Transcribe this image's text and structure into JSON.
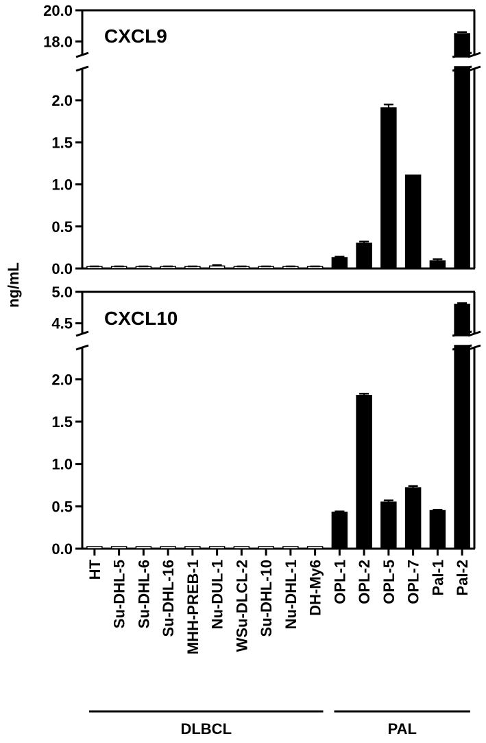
{
  "y_axis_label": "ng/mL",
  "categories": [
    "HT",
    "Su-DHL-5",
    "Su-DHL-6",
    "Su-DHL-16",
    "MHH-PREB-1",
    "Nu-DUL-1",
    "WSu-DLCL-2",
    "Su-DHL-10",
    "Nu-DHL-1",
    "DH-My6",
    "OPL-1",
    "OPL-2",
    "OPL-5",
    "OPL-7",
    "Pal-1",
    "Pal-2"
  ],
  "groups": [
    {
      "label": "DLBCL",
      "first": 0,
      "last": 9
    },
    {
      "label": "PAL",
      "first": 10,
      "last": 15
    }
  ],
  "chart_data": [
    {
      "type": "bar",
      "title": "CXCL9",
      "axis_break": true,
      "lower_range": [
        0,
        2.4
      ],
      "upper_range": [
        17,
        20
      ],
      "lower_ticks": [
        "0.0",
        "0.5",
        "1.0",
        "1.5",
        "2.0"
      ],
      "upper_ticks": [
        "18.0",
        "20.0"
      ],
      "values": [
        0.02,
        0.02,
        0.02,
        0.02,
        0.02,
        0.03,
        0.02,
        0.02,
        0.02,
        0.02,
        0.13,
        0.3,
        1.91,
        1.11,
        0.09,
        18.5
      ],
      "errors": [
        0.005,
        0.005,
        0.005,
        0.005,
        0.005,
        0.01,
        0.005,
        0.005,
        0.005,
        0.005,
        0.01,
        0.02,
        0.04,
        0.0,
        0.02,
        0.1
      ],
      "fill": [
        "#ffffff",
        "#ffffff",
        "#ffffff",
        "#ffffff",
        "#ffffff",
        "#ffffff",
        "#ffffff",
        "#ffffff",
        "#ffffff",
        "#ffffff",
        "#000000",
        "#000000",
        "#000000",
        "#000000",
        "#000000",
        "#000000"
      ]
    },
    {
      "type": "bar",
      "title": "CXCL10",
      "axis_break": true,
      "lower_range": [
        0,
        2.4
      ],
      "upper_range": [
        4.3,
        5.0
      ],
      "lower_ticks": [
        "0.0",
        "0.5",
        "1.0",
        "1.5",
        "2.0"
      ],
      "upper_ticks": [
        "4.5",
        "5.0"
      ],
      "values": [
        0,
        0,
        0,
        0,
        0,
        0,
        0,
        0,
        0,
        0,
        0.43,
        1.81,
        0.55,
        0.72,
        0.45,
        4.8
      ],
      "errors": [
        0,
        0,
        0,
        0,
        0,
        0,
        0,
        0,
        0,
        0,
        0.01,
        0.02,
        0.02,
        0.02,
        0.01,
        0.02
      ],
      "fill": [
        "#ffffff",
        "#ffffff",
        "#ffffff",
        "#ffffff",
        "#ffffff",
        "#ffffff",
        "#ffffff",
        "#ffffff",
        "#ffffff",
        "#ffffff",
        "#000000",
        "#000000",
        "#000000",
        "#000000",
        "#000000",
        "#000000"
      ]
    }
  ]
}
